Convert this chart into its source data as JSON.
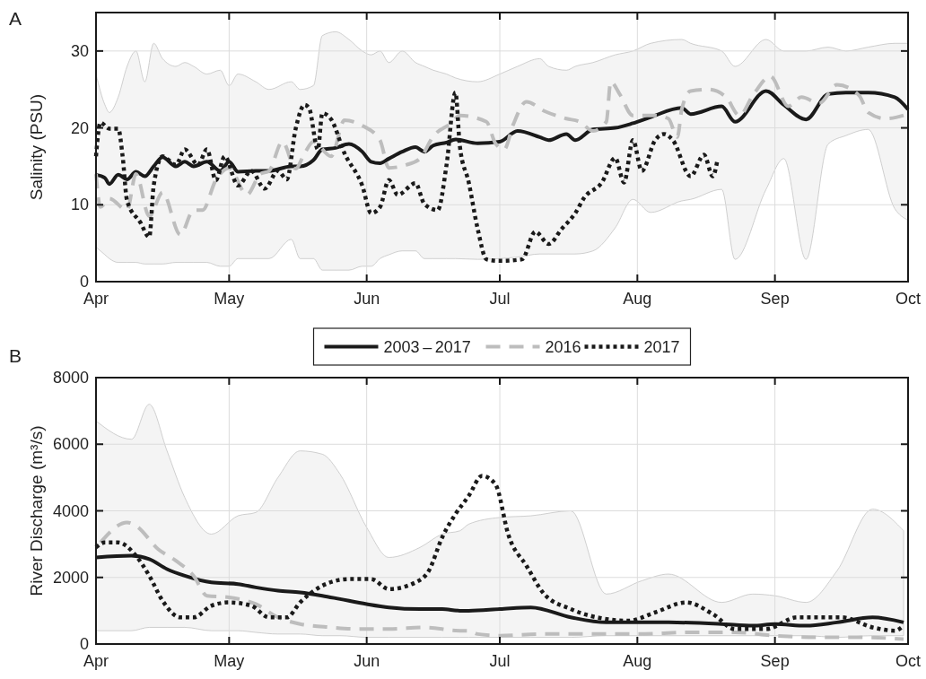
{
  "chart_data": [
    {
      "type": "line",
      "title": "A",
      "ylabel": "Salinity (PSU)",
      "xlim": [
        "--04-01",
        "--10-01"
      ],
      "xticks": [
        {
          "value": "--04-01",
          "label": "Apr"
        },
        {
          "value": "--05-01",
          "label": "May"
        },
        {
          "value": "--06-01",
          "label": "Jun"
        },
        {
          "value": "--07-01",
          "label": "Jul"
        },
        {
          "value": "--08-01",
          "label": "Aug"
        },
        {
          "value": "--09-01",
          "label": "Sep"
        },
        {
          "value": "--10-01",
          "label": "Oct"
        }
      ],
      "ylim": [
        0,
        35
      ],
      "yticks": [
        0,
        10,
        20,
        30
      ],
      "grid": true,
      "legend": false,
      "series": [
        {
          "color": "#1a1a1a",
          "line_style": "solid",
          "x": [
            "--04-01",
            "--04-03",
            "--04-04",
            "--04-06",
            "--04-08",
            "--04-10",
            "--04-12",
            "--04-14",
            "--04-16",
            "--04-19",
            "--04-21",
            "--04-23",
            "--04-26",
            "--04-29",
            "--05-01",
            "--05-03",
            "--05-07",
            "--05-10",
            "--05-15",
            "--05-17",
            "--05-20",
            "--05-22",
            "--05-25",
            "--05-28",
            "--05-31",
            "--06-02",
            "--06-04",
            "--06-06",
            "--06-09",
            "--06-12",
            "--06-14",
            "--06-16",
            "--06-19",
            "--06-21",
            "--06-26",
            "--07-01",
            "--07-05",
            "--07-10",
            "--07-12",
            "--07-16",
            "--07-18",
            "--07-22",
            "--07-27",
            "--07-31",
            "--08-04",
            "--08-11",
            "--08-13",
            "--08-20",
            "--08-23",
            "--08-30",
            "--09-03",
            "--09-08",
            "--09-13",
            "--09-17",
            "--09-22",
            "--09-28",
            "--10-01"
          ],
          "values": [
            13.9,
            13.5,
            12.7,
            13.9,
            13.3,
            14.3,
            13.7,
            15,
            16.2,
            15,
            15.6,
            15,
            15.6,
            14.4,
            15.6,
            14.3,
            14.4,
            14.4,
            15,
            15,
            15.8,
            17.2,
            17.4,
            17.9,
            16.9,
            15.6,
            15.4,
            16,
            16.9,
            17.5,
            16.9,
            17.7,
            18.1,
            18.5,
            18,
            18.2,
            19.6,
            18.8,
            18.4,
            19.2,
            18.4,
            19.8,
            20,
            20.6,
            21.4,
            22.6,
            21.8,
            22.8,
            20.8,
            24.8,
            23,
            21.1,
            24.4,
            24.6,
            24.6,
            24,
            22.4
          ],
          "lower": [
            4.5,
            3.5,
            3,
            2.5,
            2.5,
            2.5,
            2.3,
            2.3,
            2.3,
            2.5,
            2.5,
            2.5,
            2.5,
            2,
            2,
            3,
            3,
            3,
            5.5,
            3,
            3,
            1.5,
            1.5,
            1.5,
            2,
            2,
            3,
            3.5,
            4,
            4,
            3,
            3,
            3,
            3,
            2.9,
            3,
            3.2,
            3.6,
            3.6,
            3.6,
            3.6,
            4,
            7,
            10.7,
            9,
            10.5,
            10.7,
            12,
            2.9,
            12,
            16,
            2.9,
            17.9,
            19,
            19.8,
            9.5,
            8
          ],
          "upper": [
            27,
            23,
            22,
            24,
            28,
            30,
            26,
            31,
            29,
            28,
            28.5,
            28,
            27,
            27.5,
            25.5,
            27,
            26,
            25,
            26,
            25,
            25.5,
            32,
            32.5,
            31.5,
            30,
            29.5,
            30,
            28.5,
            30,
            28.5,
            28,
            27.5,
            27,
            26.5,
            26,
            27,
            28,
            29,
            28,
            27.5,
            28,
            28.5,
            29.5,
            30,
            31,
            31.5,
            31,
            30,
            28,
            31.5,
            30,
            30,
            30.5,
            30,
            30.5,
            31,
            31
          ]
        },
        {
          "color": "#bdbdbd",
          "line_style": "dashed",
          "x": [
            "--04-01",
            "--04-02",
            "--04-04",
            "--04-08",
            "--04-10",
            "--04-13",
            "--04-16",
            "--04-20",
            "--04-23",
            "--04-25",
            "--04-28",
            "--05-01",
            "--05-05",
            "--05-08",
            "--05-10",
            "--05-13",
            "--05-16",
            "--05-18",
            "--05-20",
            "--05-24",
            "--05-27",
            "--05-31",
            "--06-04",
            "--06-06",
            "--06-10",
            "--06-13",
            "--06-16",
            "--06-20",
            "--06-22",
            "--06-28",
            "--06-30",
            "--07-02",
            "--07-04",
            "--07-07",
            "--07-11",
            "--07-16",
            "--07-19",
            "--07-22",
            "--07-25",
            "--07-26",
            "--07-28",
            "--07-31",
            "--08-05",
            "--08-08",
            "--08-10",
            "--08-11",
            "--08-13",
            "--08-17",
            "--08-21",
            "--08-24",
            "--08-27",
            "--08-31",
            "--09-04",
            "--09-07",
            "--09-11",
            "--09-15",
            "--09-20",
            "--09-22",
            "--09-26",
            "--10-01"
          ],
          "values": [
            14,
            9.7,
            10.8,
            9.3,
            14,
            8.5,
            11.6,
            6.1,
            9.3,
            9.3,
            13.2,
            14.8,
            11.3,
            14,
            14.4,
            18.2,
            14.7,
            16.7,
            18.2,
            16.3,
            21,
            20.3,
            18.4,
            14.8,
            15.2,
            16,
            18.9,
            20.6,
            21.6,
            20.8,
            18,
            17.2,
            20.4,
            23.4,
            22.2,
            21.2,
            20.8,
            19.6,
            20.8,
            26,
            24.4,
            21.6,
            21.6,
            21.2,
            18.8,
            22.4,
            24.8,
            25,
            24,
            21.6,
            24.2,
            26.7,
            22.8,
            24,
            23.2,
            25.6,
            24.2,
            22,
            21.2,
            21.8
          ]
        },
        {
          "color": "#1a1a1a",
          "line_style": "dotted",
          "x": [
            "--04-01",
            "--04-02",
            "--04-04",
            "--04-06",
            "--04-07",
            "--04-08",
            "--04-11",
            "--04-13",
            "--04-14",
            "--04-16",
            "--04-19",
            "--04-21",
            "--04-24",
            "--04-26",
            "--04-28",
            "--04-30",
            "--05-03",
            "--05-06",
            "--05-09",
            "--05-12",
            "--05-14",
            "--05-16",
            "--05-18",
            "--05-19",
            "--05-21",
            "--05-22",
            "--05-24",
            "--05-27",
            "--05-31",
            "--06-02",
            "--06-04",
            "--06-06",
            "--06-08",
            "--06-12",
            "--06-14",
            "--06-17",
            "--06-19",
            "--06-21",
            "--06-22",
            "--06-24",
            "--06-26",
            "--06-28",
            "--07-01",
            "--07-06",
            "--07-09",
            "--07-12",
            "--07-15",
            "--07-18",
            "--07-20",
            "--07-24",
            "--07-27",
            "--07-29",
            "--07-31",
            "--08-02",
            "--08-05",
            "--08-07",
            "--08-09",
            "--08-13",
            "--08-16",
            "--08-18",
            "--08-19"
          ],
          "values": [
            16.3,
            20.7,
            19.9,
            19.9,
            16.3,
            10.5,
            7.7,
            5.8,
            12.5,
            16.3,
            15.2,
            17.2,
            15.2,
            17.2,
            13.2,
            16.3,
            12.5,
            14.4,
            12.1,
            14.4,
            13.3,
            19.9,
            23,
            22.6,
            17.2,
            21.9,
            21.1,
            16.7,
            12.5,
            8.9,
            9.7,
            13.2,
            11.3,
            12.8,
            10.1,
            9.3,
            15.2,
            24.6,
            17.6,
            12.9,
            6.9,
            2.9,
            2.7,
            2.9,
            6.5,
            4.9,
            6.9,
            8.9,
            10.9,
            12.9,
            16.1,
            12.9,
            18.4,
            14.4,
            18.4,
            19.2,
            18.4,
            13.7,
            16.5,
            13.7,
            15.7
          ]
        }
      ]
    },
    {
      "type": "line",
      "title": "B",
      "ylabel": "River Discharge (m³/s)",
      "xlim": [
        "--04-01",
        "--10-01"
      ],
      "xticks": [
        {
          "value": "--04-01",
          "label": "Apr"
        },
        {
          "value": "--05-01",
          "label": "May"
        },
        {
          "value": "--06-01",
          "label": "Jun"
        },
        {
          "value": "--07-01",
          "label": "Jul"
        },
        {
          "value": "--08-01",
          "label": "Aug"
        },
        {
          "value": "--09-01",
          "label": "Sep"
        },
        {
          "value": "--10-01",
          "label": "Oct"
        }
      ],
      "ylim": [
        0,
        8000
      ],
      "yticks": [
        0,
        2000,
        4000,
        6000,
        8000
      ],
      "grid": true,
      "legend": "top",
      "series": [
        {
          "name": "2003 – 2017",
          "color": "#1a1a1a",
          "line_style": "solid",
          "x": [
            "--04-01",
            "--04-09",
            "--04-13",
            "--04-17",
            "--04-21",
            "--04-27",
            "--05-03",
            "--05-07",
            "--05-12",
            "--05-17",
            "--05-22",
            "--05-26",
            "--06-01",
            "--06-06",
            "--06-13",
            "--06-18",
            "--06-22",
            "--06-24",
            "--07-01",
            "--07-08",
            "--07-17",
            "--07-25",
            "--08-02",
            "--08-08",
            "--08-20",
            "--08-27",
            "--09-01",
            "--09-08",
            "--09-15",
            "--09-23",
            "--09-30"
          ],
          "values": [
            2600,
            2650,
            2550,
            2250,
            2050,
            1850,
            1800,
            1700,
            1600,
            1550,
            1450,
            1350,
            1200,
            1100,
            1050,
            1050,
            1000,
            1000,
            1050,
            1100,
            800,
            650,
            650,
            650,
            600,
            550,
            600,
            550,
            650,
            800,
            650
          ],
          "lower": [
            400,
            400,
            500,
            500,
            500,
            400,
            400,
            350,
            300,
            300,
            250,
            250,
            200,
            200,
            200,
            200,
            200,
            200,
            200,
            200,
            200,
            250,
            250,
            250,
            250,
            250,
            250,
            250,
            200,
            250,
            250
          ],
          "upper": [
            6700,
            6150,
            7200,
            5800,
            4400,
            3300,
            3850,
            3950,
            5000,
            5800,
            5700,
            5100,
            3500,
            2600,
            2900,
            3300,
            3400,
            3600,
            3800,
            3850,
            4000,
            1500,
            1900,
            2100,
            1250,
            1500,
            1450,
            1250,
            2200,
            4050,
            3400
          ]
        },
        {
          "name": "2016",
          "color": "#bdbdbd",
          "line_style": "dashed",
          "x": [
            "--04-02",
            "--04-08",
            "--04-10",
            "--04-15",
            "--04-19",
            "--04-23",
            "--04-26",
            "--05-01",
            "--05-07",
            "--05-12",
            "--05-17",
            "--05-24",
            "--05-30",
            "--06-06",
            "--06-14",
            "--06-22",
            "--06-24",
            "--06-26",
            "--07-01",
            "--07-10",
            "--07-21",
            "--08-01",
            "--08-13",
            "--08-23",
            "--09-01",
            "--09-10",
            "--09-20",
            "--09-30"
          ],
          "values": [
            3050,
            3650,
            3550,
            2850,
            2500,
            2050,
            1450,
            1400,
            1200,
            800,
            600,
            500,
            450,
            450,
            500,
            400,
            400,
            300,
            250,
            300,
            300,
            300,
            350,
            350,
            250,
            200,
            200,
            150
          ]
        },
        {
          "name": "2017",
          "color": "#1a1a1a",
          "line_style": "dotted",
          "x": [
            "--04-01",
            "--04-03",
            "--04-06",
            "--04-10",
            "--04-13",
            "--04-16",
            "--04-20",
            "--04-23",
            "--04-27",
            "--05-01",
            "--05-06",
            "--05-10",
            "--05-14",
            "--05-17",
            "--05-22",
            "--05-28",
            "--06-02",
            "--06-06",
            "--06-12",
            "--06-15",
            "--06-18",
            "--06-21",
            "--06-24",
            "--06-27",
            "--06-30",
            "--07-03",
            "--07-07",
            "--07-11",
            "--07-17",
            "--07-25",
            "--07-30",
            "--08-05",
            "--08-12",
            "--08-18",
            "--08-23",
            "--08-30",
            "--09-06",
            "--09-16",
            "--09-23",
            "--09-28",
            "--09-30"
          ],
          "values": [
            2900,
            3050,
            3050,
            2650,
            2050,
            1300,
            800,
            800,
            1150,
            1250,
            1150,
            800,
            800,
            1250,
            1750,
            1950,
            1950,
            1650,
            1850,
            2200,
            3200,
            3900,
            4450,
            5050,
            4800,
            3250,
            2350,
            1500,
            1050,
            750,
            700,
            950,
            1250,
            900,
            450,
            450,
            800,
            800,
            500,
            400,
            550
          ]
        }
      ]
    }
  ]
}
